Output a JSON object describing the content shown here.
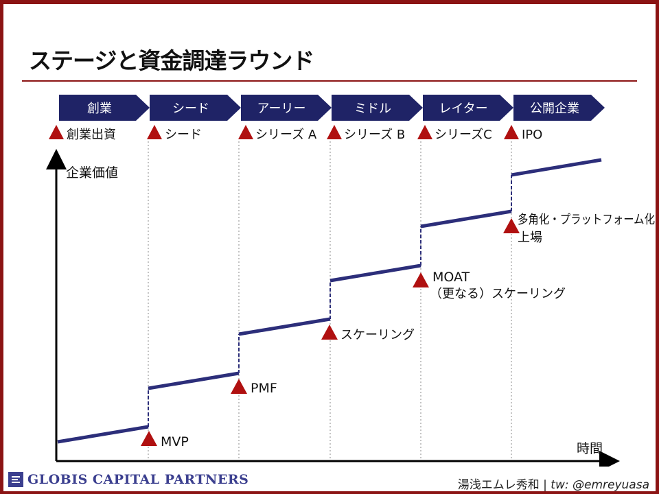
{
  "title": "ステージと資金調達ラウンド",
  "stages": [
    "創業",
    "シード",
    "アーリー",
    "ミドル",
    "レイター",
    "公開企業"
  ],
  "rounds": [
    "創業出資",
    "シード",
    "シリーズ A",
    "シリーズ B",
    "シリーズC",
    "IPO"
  ],
  "y_axis_label": "企業価値",
  "x_axis_label": "時間",
  "milestones": [
    {
      "lines": [
        "MVP"
      ]
    },
    {
      "lines": [
        "PMF"
      ]
    },
    {
      "lines": [
        "スケーリング"
      ]
    },
    {
      "lines": [
        "MOAT",
        "（更なる）スケーリング"
      ]
    },
    {
      "lines": [
        "多角化・プラットフォーム化",
        "上場"
      ]
    }
  ],
  "footer": {
    "logo_text": "GLOBIS CAPITAL PARTNERS",
    "author": "湯浅エムレ秀和 | ",
    "handle": "tw: @emreyuasa"
  },
  "colors": {
    "frame": "#8b1414",
    "chevron": "#1f2366",
    "line": "#2c2e7a",
    "triangle": "#b01010"
  }
}
